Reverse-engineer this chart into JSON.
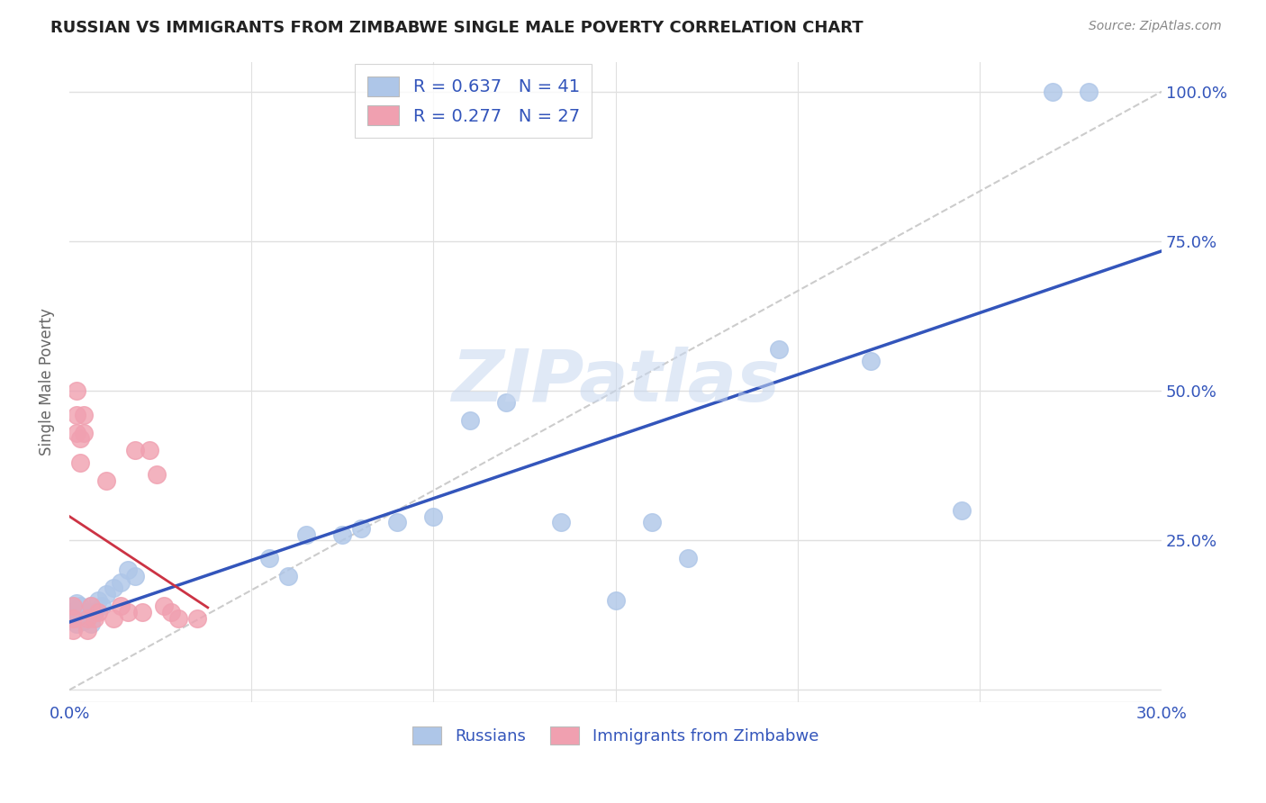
{
  "title": "RUSSIAN VS IMMIGRANTS FROM ZIMBABWE SINGLE MALE POVERTY CORRELATION CHART",
  "source": "Source: ZipAtlas.com",
  "ylabel": "Single Male Poverty",
  "xlabel": "",
  "xlim": [
    0.0,
    0.3
  ],
  "ylim": [
    -0.02,
    1.05
  ],
  "xticks": [
    0.0,
    0.05,
    0.1,
    0.15,
    0.2,
    0.25,
    0.3
  ],
  "ytick_positions": [
    0.0,
    0.25,
    0.5,
    0.75,
    1.0
  ],
  "yticklabels": [
    "",
    "25.0%",
    "50.0%",
    "75.0%",
    "100.0%"
  ],
  "blue_color": "#aec6e8",
  "pink_color": "#f0a0b0",
  "blue_line_color": "#3355bb",
  "pink_line_color": "#cc3344",
  "diag_color": "#cccccc",
  "legend_blue_label": "R = 0.637   N = 41",
  "legend_pink_label": "R = 0.277   N = 27",
  "legend_text_color": "#3355bb",
  "bottom_legend_russian": "Russians",
  "bottom_legend_zimbabwe": "Immigrants from Zimbabwe",
  "watermark": "ZIPatlas",
  "background_color": "#ffffff",
  "grid_color": "#e0e0e0",
  "russians_x": [
    0.001,
    0.001,
    0.001,
    0.002,
    0.002,
    0.002,
    0.002,
    0.003,
    0.003,
    0.004,
    0.004,
    0.005,
    0.005,
    0.006,
    0.006,
    0.007,
    0.008,
    0.009,
    0.01,
    0.012,
    0.014,
    0.016,
    0.018,
    0.055,
    0.06,
    0.065,
    0.075,
    0.08,
    0.09,
    0.1,
    0.11,
    0.12,
    0.135,
    0.15,
    0.16,
    0.17,
    0.195,
    0.22,
    0.245,
    0.27,
    0.28
  ],
  "russians_y": [
    0.14,
    0.13,
    0.12,
    0.145,
    0.13,
    0.12,
    0.11,
    0.14,
    0.12,
    0.13,
    0.115,
    0.13,
    0.12,
    0.14,
    0.11,
    0.13,
    0.15,
    0.14,
    0.16,
    0.17,
    0.18,
    0.2,
    0.19,
    0.22,
    0.19,
    0.26,
    0.26,
    0.27,
    0.28,
    0.29,
    0.45,
    0.48,
    0.28,
    0.15,
    0.28,
    0.22,
    0.57,
    0.55,
    0.3,
    1.0,
    1.0
  ],
  "zimbabwe_x": [
    0.001,
    0.001,
    0.001,
    0.002,
    0.002,
    0.002,
    0.003,
    0.003,
    0.004,
    0.004,
    0.005,
    0.005,
    0.006,
    0.007,
    0.008,
    0.01,
    0.012,
    0.014,
    0.016,
    0.018,
    0.02,
    0.022,
    0.024,
    0.026,
    0.028,
    0.03,
    0.035
  ],
  "zimbabwe_y": [
    0.14,
    0.12,
    0.1,
    0.5,
    0.46,
    0.43,
    0.42,
    0.38,
    0.46,
    0.43,
    0.12,
    0.1,
    0.14,
    0.12,
    0.13,
    0.35,
    0.12,
    0.14,
    0.13,
    0.4,
    0.13,
    0.4,
    0.36,
    0.14,
    0.13,
    0.12,
    0.12
  ]
}
